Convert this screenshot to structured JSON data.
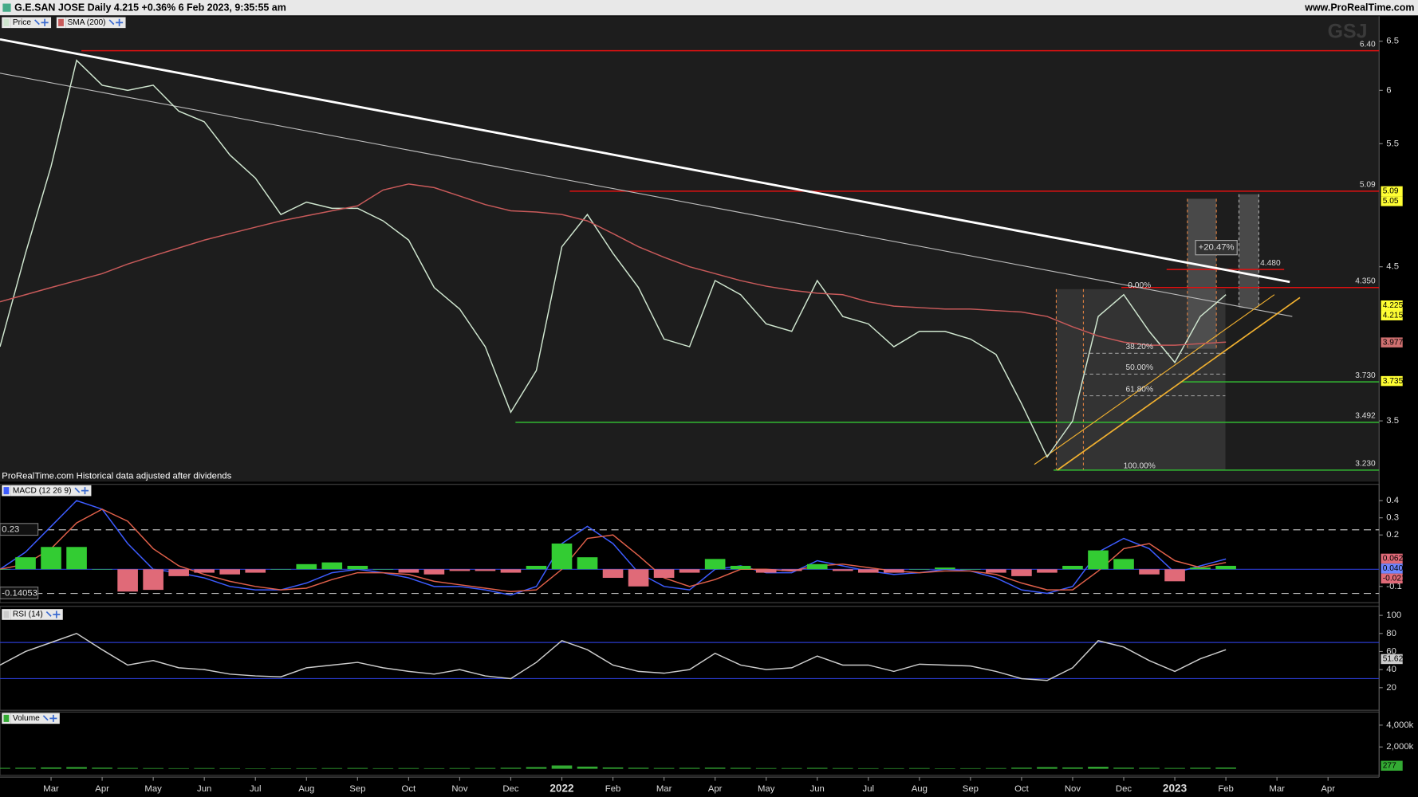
{
  "header": {
    "title": "G.E.SAN JOSE Daily 4.215 +0.36% 6 Feb 2023, 9:35:55 am",
    "site": "www.ProRealTime.com"
  },
  "chart_data": [
    {
      "type": "line",
      "categories": [
        null,
        null,
        "Mar",
        null,
        "Apr",
        null,
        "May",
        null,
        "Jun",
        null,
        "Jul",
        null,
        "Aug",
        null,
        "Sep",
        null,
        "Oct",
        null,
        "Nov",
        null,
        "Dec",
        null,
        "2022",
        null,
        "Feb",
        null,
        "Mar",
        null,
        "Apr",
        null,
        "May",
        null,
        "Jun",
        null,
        "Jul",
        null,
        "Aug",
        null,
        "Sep",
        null,
        "Oct",
        null,
        "Nov",
        null,
        "Dec",
        null,
        "2023",
        null,
        "Feb",
        null,
        "Mar",
        null,
        "Apr",
        null
      ],
      "series": [
        {
          "name": "Price",
          "color": "#cfe6cf",
          "values": [
            3.95,
            4.6,
            5.3,
            6.3,
            6.05,
            6.0,
            6.05,
            5.8,
            5.7,
            5.4,
            5.2,
            4.9,
            5.0,
            4.95,
            4.95,
            4.85,
            4.7,
            4.35,
            4.2,
            3.95,
            3.55,
            3.8,
            4.65,
            4.9,
            4.6,
            4.35,
            4.0,
            3.95,
            4.4,
            4.3,
            4.1,
            4.05,
            4.4,
            4.15,
            4.1,
            3.95,
            4.05,
            4.05,
            4.0,
            3.9,
            3.6,
            3.3,
            3.5,
            4.15,
            4.3,
            4.05,
            3.85,
            4.15,
            4.3,
            null,
            null,
            null,
            null,
            null
          ]
        },
        {
          "name": "SMA (200)",
          "color": "#c85a5a",
          "values": [
            4.25,
            4.3,
            4.35,
            4.4,
            4.45,
            4.52,
            4.58,
            4.64,
            4.7,
            4.75,
            4.8,
            4.85,
            4.89,
            4.93,
            4.97,
            5.1,
            5.15,
            5.12,
            5.05,
            4.98,
            4.93,
            4.92,
            4.9,
            4.85,
            4.75,
            4.65,
            4.57,
            4.5,
            4.45,
            4.4,
            4.36,
            4.33,
            4.31,
            4.3,
            4.25,
            4.22,
            4.21,
            4.2,
            4.2,
            4.19,
            4.18,
            4.15,
            4.08,
            4.02,
            3.98,
            3.96,
            3.96,
            3.97,
            3.98,
            null,
            null,
            null,
            null,
            null
          ]
        }
      ],
      "log_scale": true,
      "ylim": [
        3.17,
        6.77
      ],
      "yticks": [
        3.5,
        4.5,
        5.5,
        6,
        6.5
      ],
      "levels": [
        {
          "value": 6.4,
          "label": "6.40",
          "color": "#e01010"
        },
        {
          "value": 5.09,
          "label": "5.09",
          "color": "#e01010"
        },
        {
          "value": 4.48,
          "label": "4.480",
          "color": "#e01010"
        },
        {
          "value": 4.35,
          "label": "4.350",
          "color": "#e01010"
        },
        {
          "value": 3.73,
          "label": "3.730",
          "color": "#33bb33"
        },
        {
          "value": 3.492,
          "label": "3.492",
          "color": "#33bb33"
        },
        {
          "value": 3.23,
          "label": "3.230",
          "color": "#33bb33"
        }
      ],
      "price_markers": [
        {
          "value": 5.09,
          "label": "5.09",
          "color": "#ffff33"
        },
        {
          "value": 5.05,
          "label": "5.05",
          "color": "#ffff33"
        },
        {
          "value": 4.225,
          "label": "4.225",
          "color": "#ffff33"
        },
        {
          "value": 4.215,
          "label": "4.215",
          "color": "#ffff33"
        },
        {
          "value": 3.9776,
          "label": "3.9776",
          "color": "#d07070"
        },
        {
          "value": 3.735,
          "label": "3.735",
          "color": "#ffff33"
        }
      ],
      "trendlines": [
        {
          "from": [
            0,
            6.52
          ],
          "to": [
            50.5,
            4.39
          ],
          "color": "#ffffff",
          "width": 2.5
        },
        {
          "from": [
            0,
            6.17
          ],
          "to": [
            50.6,
            4.15
          ],
          "color": "#bbbbbb",
          "width": 1
        },
        {
          "from": [
            40.5,
            3.26
          ],
          "to": [
            49.9,
            4.3
          ],
          "color": "#f0b030",
          "width": 1
        },
        {
          "from": [
            41.4,
            3.23
          ],
          "to": [
            50.9,
            4.28
          ],
          "color": "#f0b030",
          "width": 1.5
        }
      ],
      "fib_labels": [
        "0.00%",
        "38.20%",
        "50.00%",
        "61.80%",
        "100.00%"
      ],
      "change_label": "+20.47%",
      "watermark": "GSJ",
      "footnote": "ProRealTime.com Historical data adjusted after dividends"
    },
    {
      "type": "line",
      "series": [
        {
          "name": "MACD (12 26 9)",
          "color": "#3d5cff",
          "values": [
            0,
            0.1,
            0.25,
            0.4,
            0.35,
            0.15,
            0,
            -0.02,
            -0.05,
            -0.1,
            -0.12,
            -0.12,
            -0.08,
            -0.02,
            0,
            -0.02,
            -0.05,
            -0.1,
            -0.1,
            -0.12,
            -0.15,
            -0.1,
            0.15,
            0.25,
            0.15,
            -0.02,
            -0.1,
            -0.12,
            0,
            0.02,
            -0.02,
            -0.02,
            0.05,
            0.02,
            -0.01,
            -0.03,
            -0.02,
            0,
            -0.01,
            -0.05,
            -0.12,
            -0.14,
            -0.1,
            0.1,
            0.18,
            0.12,
            -0.02,
            0.02,
            0.06,
            null,
            null,
            null,
            null,
            null
          ]
        },
        {
          "color": "#e0604a",
          "values": [
            0,
            0.03,
            0.12,
            0.27,
            0.35,
            0.28,
            0.12,
            0.02,
            -0.03,
            -0.07,
            -0.1,
            -0.12,
            -0.11,
            -0.06,
            -0.02,
            -0.02,
            -0.03,
            -0.07,
            -0.09,
            -0.11,
            -0.13,
            -0.12,
            0,
            0.18,
            0.2,
            0.08,
            -0.05,
            -0.1,
            -0.06,
            0,
            0,
            -0.01,
            0.02,
            0.03,
            0.01,
            -0.01,
            -0.02,
            -0.01,
            -0.01,
            -0.03,
            -0.08,
            -0.12,
            -0.12,
            -0.01,
            0.12,
            0.15,
            0.05,
            0.01,
            0.04,
            null,
            null,
            null,
            null,
            null
          ]
        },
        {
          "type": "bar",
          "color": "#33cc33",
          "negative_color": "#e06a78",
          "values": [
            0,
            0.07,
            0.13,
            0.13,
            0,
            -0.13,
            -0.12,
            -0.04,
            -0.02,
            -0.03,
            -0.02,
            0,
            0.03,
            0.04,
            0.02,
            0,
            -0.02,
            -0.03,
            -0.01,
            -0.01,
            -0.02,
            0.02,
            0.15,
            0.07,
            -0.05,
            -0.1,
            -0.05,
            -0.02,
            0.06,
            0.02,
            -0.02,
            -0.01,
            0.03,
            -0.01,
            -0.02,
            -0.02,
            0,
            0.01,
            0,
            -0.02,
            -0.04,
            -0.02,
            0.02,
            0.11,
            0.06,
            -0.03,
            -0.07,
            0.01,
            0.02,
            null,
            null,
            null,
            null,
            null
          ]
        }
      ],
      "ylim": [
        -0.195,
        0.495
      ],
      "yticks": [
        -0.1,
        0.2,
        0.3,
        0.4
      ],
      "ref_lines": [
        {
          "value": 0.23,
          "label": "0.23"
        },
        {
          "value": -0.14053,
          "label": "-0.14053"
        }
      ],
      "baseline": 0,
      "baseline_color": "#2a3acc",
      "price_markers": [
        {
          "value": 0.062,
          "label": "0.0620",
          "color": "#e06a78"
        },
        {
          "value": 0.0405,
          "label": "0.0405",
          "color": "#6f86ff"
        },
        {
          "value": -0.0215,
          "label": "-0.0215",
          "color": "#e06a78"
        }
      ]
    },
    {
      "type": "line",
      "series": [
        {
          "name": "RSI (14)",
          "color": "#cccccc",
          "values": [
            45,
            60,
            70,
            80,
            62,
            45,
            50,
            42,
            40,
            35,
            33,
            32,
            42,
            45,
            48,
            42,
            38,
            35,
            40,
            33,
            30,
            48,
            72,
            62,
            45,
            38,
            36,
            40,
            58,
            45,
            40,
            42,
            55,
            45,
            45,
            38,
            46,
            45,
            44,
            38,
            30,
            28,
            42,
            72,
            65,
            50,
            38,
            52,
            62,
            null,
            null,
            null,
            null,
            null
          ]
        }
      ],
      "ylim": [
        -5,
        110
      ],
      "yticks": [
        20,
        40,
        60,
        80,
        100
      ],
      "bands": [
        30,
        70
      ],
      "band_color": "#2a3acc",
      "price_markers": [
        {
          "value": 51.628,
          "label": "51.628",
          "color": "#cccccc"
        }
      ]
    },
    {
      "type": "bar",
      "series": [
        {
          "name": "Volume",
          "color": "#33aa33",
          "values": [
            80,
            90,
            120,
            150,
            100,
            70,
            60,
            50,
            60,
            50,
            40,
            45,
            50,
            60,
            70,
            50,
            60,
            50,
            60,
            70,
            90,
            150,
            300,
            200,
            120,
            90,
            70,
            80,
            100,
            80,
            60,
            60,
            80,
            60,
            50,
            50,
            60,
            40,
            50,
            60,
            100,
            150,
            120,
            180,
            100,
            80,
            70,
            90,
            110,
            null,
            null,
            null,
            null,
            null
          ]
        }
      ],
      "ylim": [
        -600,
        5200
      ],
      "yticks": [
        {
          "value": 2000,
          "label": "2,000k"
        },
        {
          "value": 4000,
          "label": "4,000k"
        }
      ],
      "price_markers": [
        {
          "value": 277,
          "label": "277",
          "color": "#33aa33"
        }
      ]
    }
  ]
}
